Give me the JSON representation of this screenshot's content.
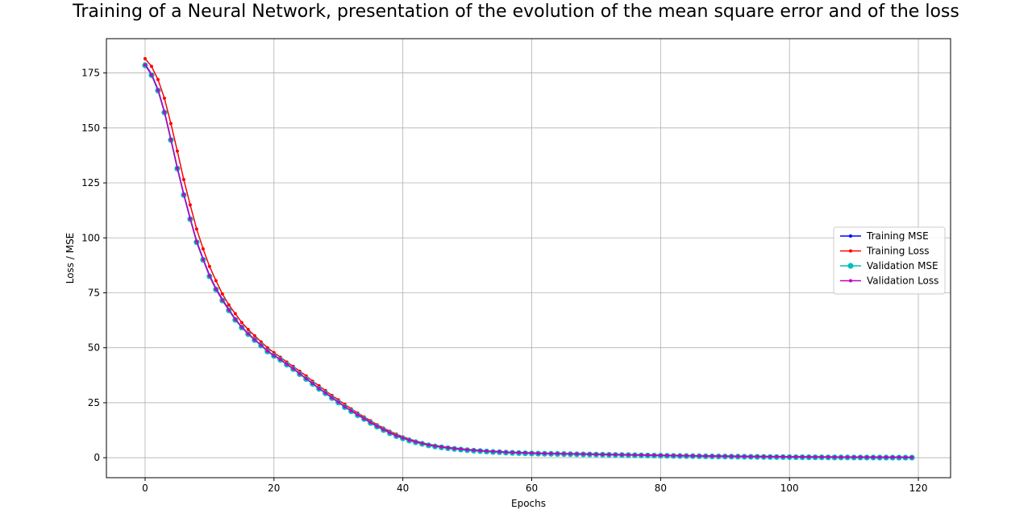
{
  "chart_data": {
    "type": "line",
    "title": "Training of a Neural Network, presentation of the evolution of the mean square error and of the loss",
    "xlabel": "Epochs",
    "ylabel": "Loss / MSE",
    "xlim": [
      -6,
      125
    ],
    "ylim": [
      -9.1,
      190.6
    ],
    "xticks": [
      0,
      20,
      40,
      60,
      80,
      100,
      120
    ],
    "yticks": [
      0,
      25,
      50,
      75,
      100,
      125,
      150,
      175
    ],
    "grid": true,
    "legend_position": "center-right",
    "series": [
      {
        "name": "Training MSE",
        "color": "#0000ff",
        "marker": "dot",
        "values": [
          179.0,
          174.5,
          167.5,
          157.5,
          145.0,
          132.0,
          120.0,
          109.0,
          98.5,
          90.5,
          83.0,
          77.0,
          72.0,
          67.5,
          63.0,
          59.5,
          56.5,
          53.7,
          51.2,
          48.5,
          46.5,
          44.7,
          42.5,
          40.5,
          38.2,
          36.0,
          33.8,
          31.5,
          29.5,
          27.3,
          25.3,
          23.2,
          21.3,
          19.5,
          17.8,
          16.0,
          14.3,
          12.8,
          11.3,
          10.0,
          9.0,
          8.0,
          7.2,
          6.5,
          5.8,
          5.3,
          4.9,
          4.5,
          4.2,
          3.9,
          3.6,
          3.4,
          3.2,
          3.0,
          2.8,
          2.7,
          2.5,
          2.4,
          2.3,
          2.2,
          2.1,
          2.0,
          1.95,
          1.9,
          1.85,
          1.8,
          1.75,
          1.7,
          1.65,
          1.6,
          1.55,
          1.5,
          1.45,
          1.4,
          1.35,
          1.3,
          1.25,
          1.2,
          1.15,
          1.1,
          1.05,
          1.0,
          0.97,
          0.94,
          0.91,
          0.88,
          0.85,
          0.82,
          0.79,
          0.76,
          0.73,
          0.7,
          0.67,
          0.64,
          0.61,
          0.58,
          0.55,
          0.52,
          0.5,
          0.48,
          0.46,
          0.44,
          0.42,
          0.4,
          0.38,
          0.36,
          0.34,
          0.32,
          0.3,
          0.28,
          0.26,
          0.25,
          0.24,
          0.23,
          0.22,
          0.21,
          0.2,
          0.19,
          0.18,
          0.17
        ]
      },
      {
        "name": "Training Loss",
        "color": "#ff0000",
        "marker": "dot",
        "values": [
          181.5,
          178.0,
          172.0,
          163.5,
          152.0,
          139.5,
          126.5,
          115.0,
          104.0,
          95.0,
          87.0,
          80.5,
          74.5,
          69.5,
          65.5,
          61.5,
          58.3,
          55.5,
          52.7,
          50.0,
          47.8,
          45.7,
          43.5,
          41.5,
          39.3,
          37.2,
          34.8,
          32.7,
          30.5,
          28.3,
          26.3,
          24.3,
          22.2,
          20.3,
          18.5,
          16.8,
          15.0,
          13.5,
          12.0,
          10.7,
          9.5,
          8.5,
          7.6,
          6.8,
          6.1,
          5.6,
          5.1,
          4.7,
          4.4,
          4.1,
          3.8,
          3.5,
          3.3,
          3.1,
          2.9,
          2.8,
          2.6,
          2.5,
          2.4,
          2.3,
          2.2,
          2.1,
          2.05,
          2.0,
          1.95,
          1.9,
          1.85,
          1.8,
          1.75,
          1.7,
          1.65,
          1.6,
          1.55,
          1.5,
          1.45,
          1.4,
          1.35,
          1.3,
          1.25,
          1.2,
          1.15,
          1.1,
          1.05,
          1.0,
          0.97,
          0.94,
          0.91,
          0.88,
          0.85,
          0.82,
          0.79,
          0.76,
          0.73,
          0.7,
          0.67,
          0.64,
          0.61,
          0.58,
          0.55,
          0.52,
          0.5,
          0.48,
          0.46,
          0.44,
          0.42,
          0.4,
          0.38,
          0.36,
          0.34,
          0.32,
          0.3,
          0.29,
          0.28,
          0.27,
          0.26,
          0.25,
          0.24,
          0.23,
          0.22,
          0.21
        ]
      },
      {
        "name": "Validation MSE",
        "color": "#00bfbf",
        "marker": "circle",
        "values": [
          178.5,
          174.0,
          167.0,
          157.0,
          144.5,
          131.5,
          119.5,
          108.5,
          98.0,
          90.0,
          82.5,
          76.5,
          71.5,
          67.0,
          62.7,
          59.2,
          56.2,
          53.5,
          51.0,
          48.3,
          46.3,
          44.5,
          42.3,
          40.3,
          38.0,
          35.8,
          33.6,
          31.3,
          29.3,
          27.1,
          25.1,
          23.0,
          21.1,
          19.3,
          17.6,
          15.8,
          14.1,
          12.6,
          11.1,
          9.8,
          8.8,
          7.8,
          7.0,
          6.3,
          5.6,
          5.1,
          4.7,
          4.3,
          4.0,
          3.7,
          3.4,
          3.2,
          3.0,
          2.8,
          2.6,
          2.5,
          2.3,
          2.2,
          2.1,
          2.0,
          1.9,
          1.85,
          1.8,
          1.75,
          1.7,
          1.65,
          1.6,
          1.55,
          1.5,
          1.45,
          1.4,
          1.35,
          1.3,
          1.25,
          1.2,
          1.15,
          1.1,
          1.05,
          1.0,
          0.95,
          0.9,
          0.86,
          0.82,
          0.78,
          0.74,
          0.7,
          0.66,
          0.62,
          0.58,
          0.55,
          0.52,
          0.49,
          0.46,
          0.43,
          0.4,
          0.37,
          0.34,
          0.31,
          0.29,
          0.27,
          0.25,
          0.23,
          0.21,
          0.19,
          0.17,
          0.15,
          0.13,
          0.12,
          0.11,
          0.1,
          0.09,
          0.08,
          0.07,
          0.06,
          0.05,
          0.05,
          0.04,
          0.04,
          0.03,
          0.03
        ]
      },
      {
        "name": "Validation Loss",
        "color": "#bf00bf",
        "marker": "dot",
        "values": [
          178.7,
          174.2,
          167.2,
          157.2,
          144.7,
          131.7,
          119.7,
          108.7,
          98.2,
          90.2,
          82.7,
          76.7,
          71.7,
          67.2,
          62.9,
          59.4,
          56.4,
          53.7,
          51.2,
          48.5,
          46.5,
          44.7,
          42.5,
          40.5,
          38.2,
          36.0,
          33.8,
          31.5,
          29.5,
          27.3,
          25.3,
          23.2,
          21.3,
          19.5,
          17.8,
          16.0,
          14.3,
          12.8,
          11.3,
          10.0,
          9.0,
          8.0,
          7.2,
          6.5,
          5.8,
          5.3,
          4.9,
          4.5,
          4.2,
          3.9,
          3.6,
          3.4,
          3.2,
          3.0,
          2.8,
          2.7,
          2.5,
          2.4,
          2.3,
          2.2,
          2.1,
          2.0,
          1.95,
          1.9,
          1.85,
          1.8,
          1.75,
          1.7,
          1.65,
          1.6,
          1.55,
          1.5,
          1.45,
          1.4,
          1.35,
          1.3,
          1.25,
          1.2,
          1.15,
          1.1,
          1.05,
          1.0,
          0.96,
          0.92,
          0.88,
          0.84,
          0.8,
          0.76,
          0.72,
          0.69,
          0.66,
          0.63,
          0.6,
          0.57,
          0.54,
          0.51,
          0.48,
          0.45,
          0.43,
          0.41,
          0.39,
          0.37,
          0.35,
          0.33,
          0.31,
          0.29,
          0.27,
          0.26,
          0.25,
          0.24,
          0.23,
          0.22,
          0.21,
          0.2,
          0.19,
          0.19,
          0.18,
          0.18,
          0.17,
          0.17
        ]
      }
    ]
  }
}
